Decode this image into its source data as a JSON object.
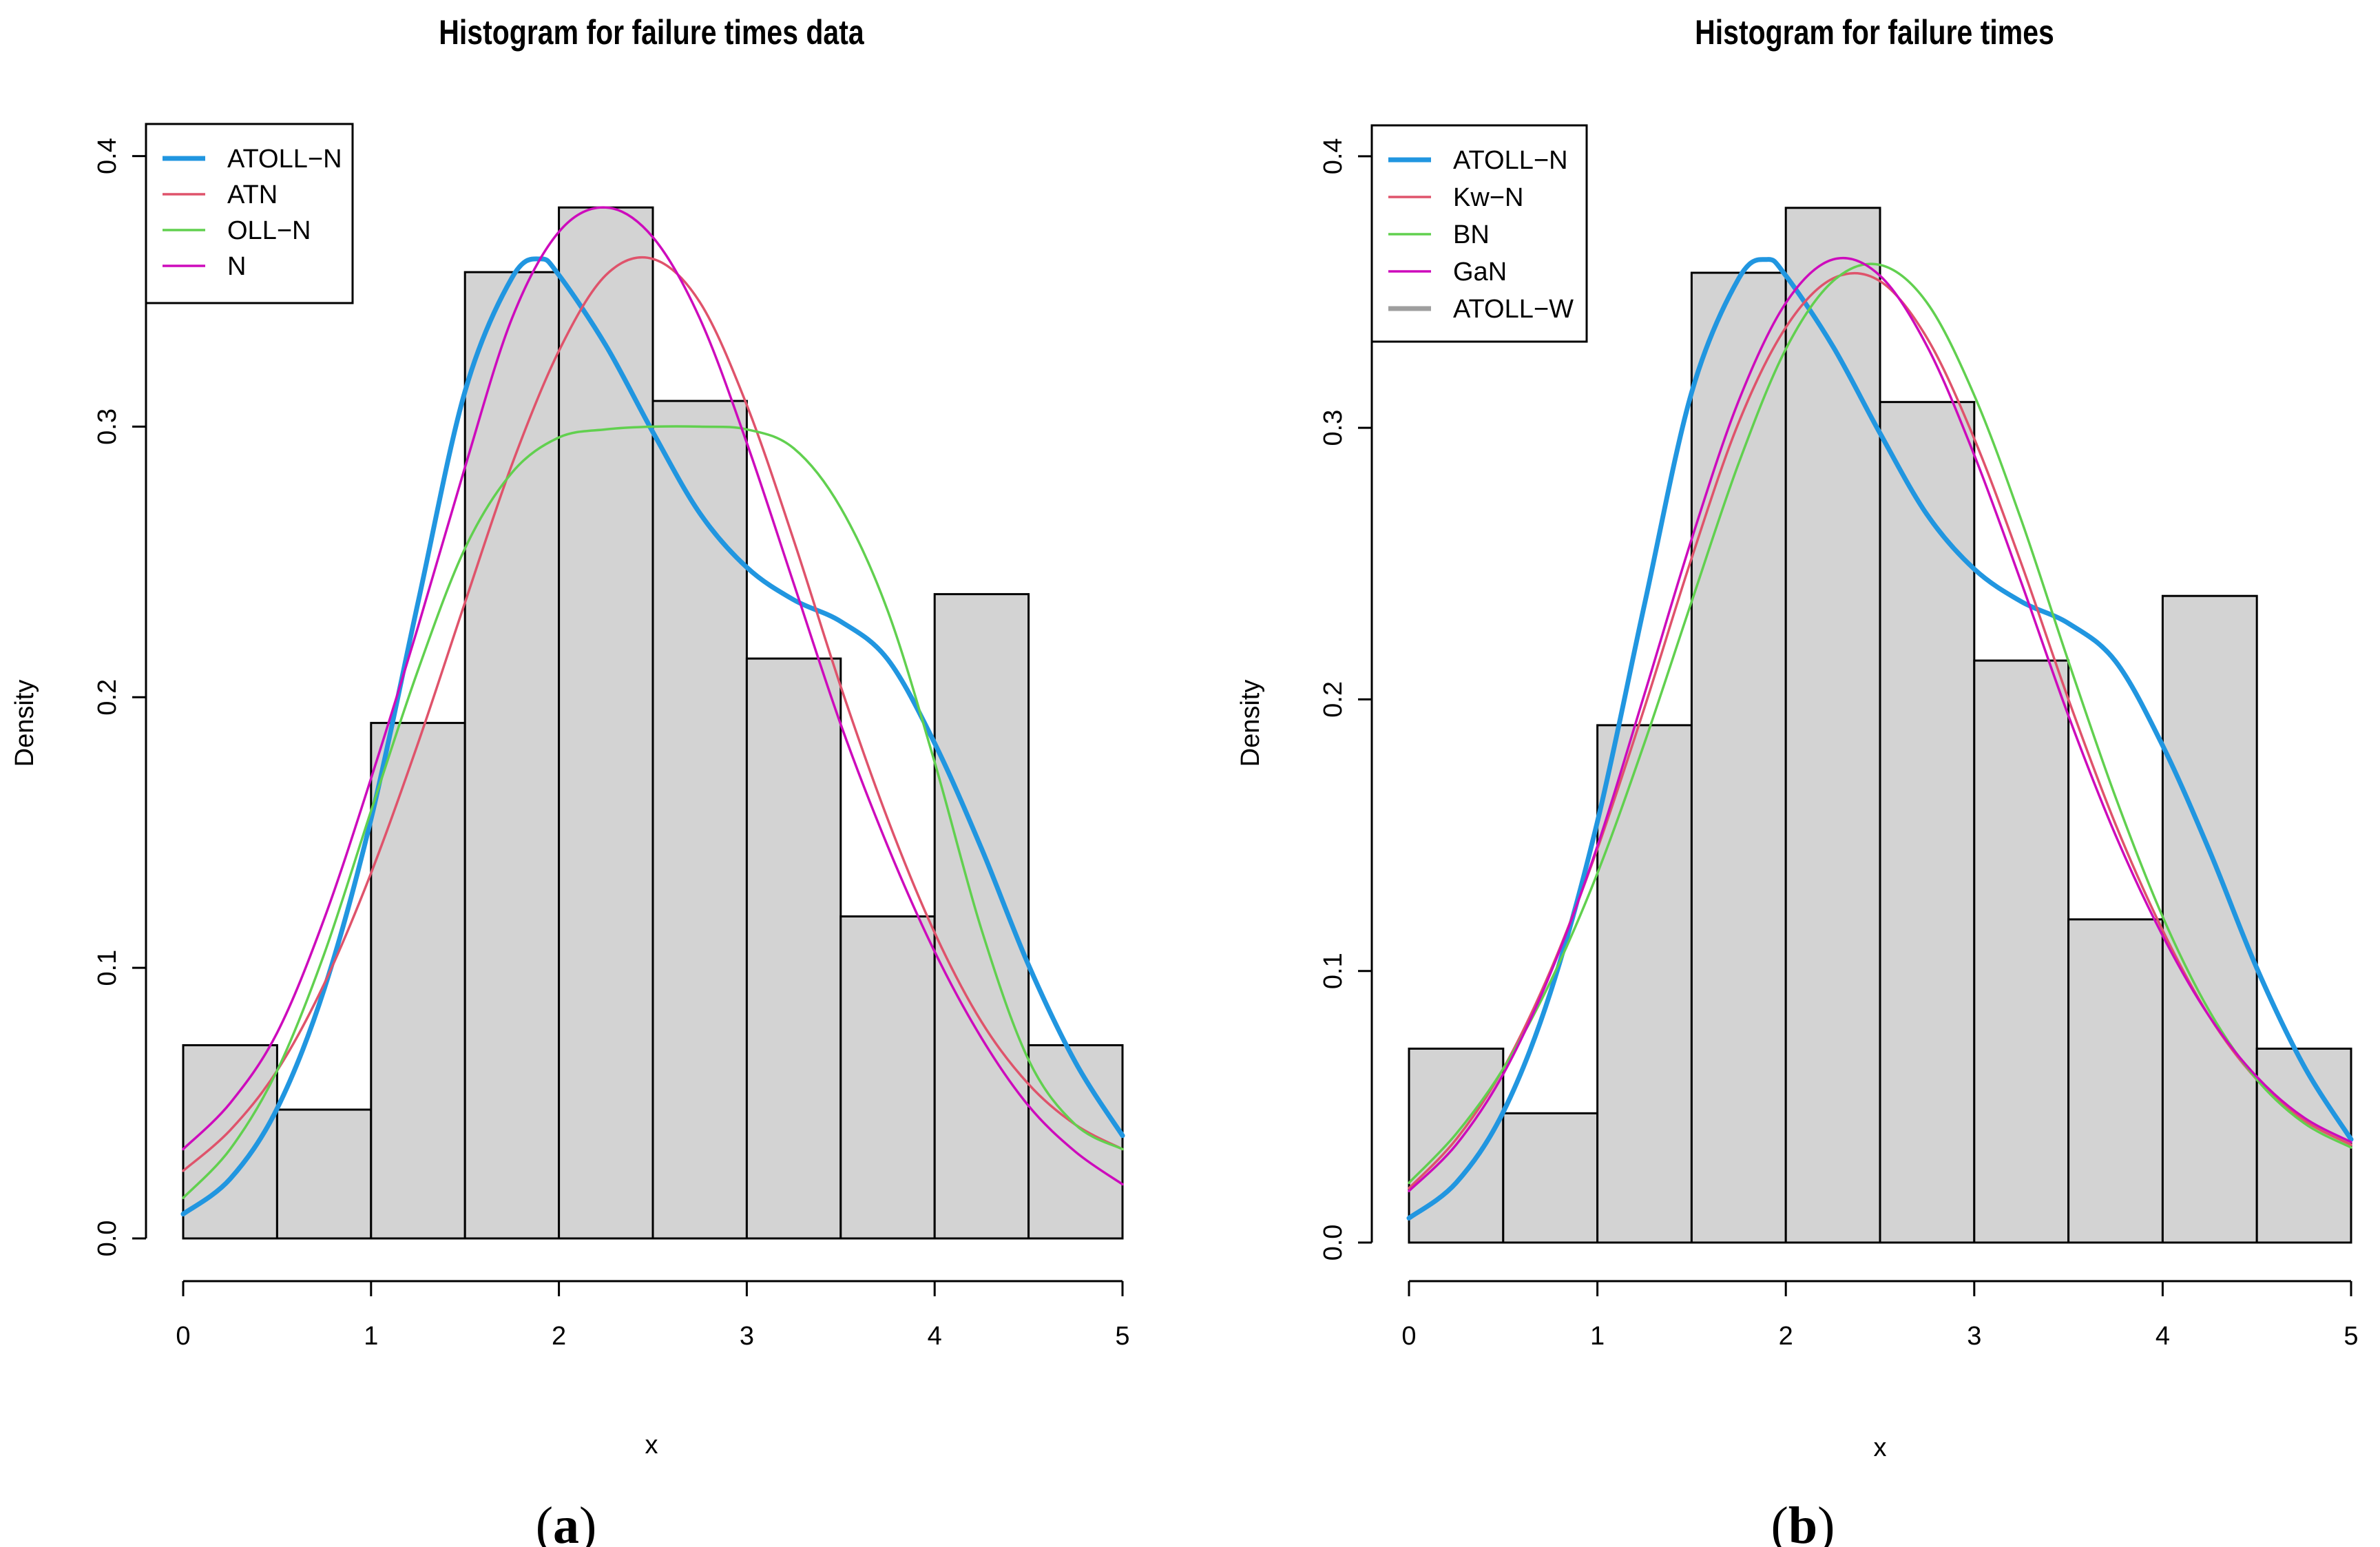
{
  "figure": {
    "panels": [
      {
        "label_open": "(",
        "label_letter": "a",
        "label_close": ")"
      },
      {
        "label_open": "(",
        "label_letter": "b",
        "label_close": ")"
      }
    ]
  },
  "chart_data": [
    {
      "type": "histogram",
      "title": "Histogram for failure times data",
      "xlabel": "x",
      "ylabel": "Density",
      "xlim": [
        0,
        5
      ],
      "ylim": [
        0,
        0.42
      ],
      "xticks": [
        0,
        1,
        2,
        3,
        4,
        5
      ],
      "yticks": [
        0.0,
        0.1,
        0.2,
        0.3,
        0.4
      ],
      "ytick_labels": [
        "0.0",
        "0.1",
        "0.2",
        "0.3",
        "0.4"
      ],
      "bin_edges": [
        0,
        0.5,
        1,
        1.5,
        2,
        2.5,
        3,
        3.5,
        4,
        4.5,
        5
      ],
      "values": [
        0.0714,
        0.0476,
        0.1905,
        0.3571,
        0.381,
        0.3095,
        0.2143,
        0.119,
        0.2381,
        0.0714
      ],
      "bar_color": "#d3d3d3",
      "legend_position": "top-left",
      "series": [
        {
          "name": "ATOLL−N",
          "color": "#2196e0",
          "width": "thick",
          "x": [
            0,
            0.25,
            0.5,
            0.75,
            1,
            1.25,
            1.5,
            1.75,
            1.9,
            2,
            2.25,
            2.5,
            2.75,
            3,
            3.25,
            3.5,
            3.75,
            4,
            4.25,
            4.5,
            4.75,
            5
          ],
          "y": [
            0.009,
            0.022,
            0.048,
            0.092,
            0.155,
            0.235,
            0.313,
            0.355,
            0.362,
            0.356,
            0.33,
            0.298,
            0.268,
            0.248,
            0.236,
            0.228,
            0.214,
            0.183,
            0.144,
            0.101,
            0.065,
            0.038
          ]
        },
        {
          "name": "ATN",
          "color": "#df536b",
          "width": "thin",
          "x": [
            0,
            0.25,
            0.5,
            0.75,
            1,
            1.25,
            1.5,
            1.75,
            2,
            2.25,
            2.5,
            2.75,
            3,
            3.25,
            3.5,
            3.75,
            4,
            4.25,
            4.5,
            4.75,
            5
          ],
          "y": [
            0.025,
            0.04,
            0.062,
            0.094,
            0.135,
            0.183,
            0.235,
            0.286,
            0.328,
            0.356,
            0.362,
            0.346,
            0.308,
            0.258,
            0.204,
            0.155,
            0.113,
            0.08,
            0.057,
            0.042,
            0.033
          ]
        },
        {
          "name": "OLL−N",
          "color": "#61d04f",
          "width": "thin",
          "x": [
            0,
            0.25,
            0.5,
            0.75,
            1,
            1.25,
            1.5,
            1.75,
            2,
            2.25,
            2.5,
            2.75,
            3,
            3.25,
            3.5,
            3.75,
            4,
            4.25,
            4.5,
            4.75,
            5
          ],
          "y": [
            0.015,
            0.033,
            0.062,
            0.105,
            0.158,
            0.21,
            0.255,
            0.283,
            0.296,
            0.299,
            0.3,
            0.3,
            0.299,
            0.292,
            0.27,
            0.232,
            0.176,
            0.114,
            0.066,
            0.042,
            0.033
          ]
        },
        {
          "name": "N",
          "color": "#cd0bbc",
          "width": "thin",
          "x": [
            0,
            0.25,
            0.5,
            0.75,
            1,
            1.25,
            1.5,
            1.75,
            2,
            2.25,
            2.5,
            2.75,
            3,
            3.25,
            3.5,
            3.75,
            4,
            4.25,
            4.5,
            4.75,
            5
          ],
          "y": [
            0.033,
            0.05,
            0.076,
            0.118,
            0.17,
            0.226,
            0.285,
            0.34,
            0.372,
            0.381,
            0.37,
            0.34,
            0.294,
            0.242,
            0.19,
            0.145,
            0.106,
            0.074,
            0.049,
            0.032,
            0.02
          ]
        }
      ]
    },
    {
      "type": "histogram",
      "title": "Histogram for failure times",
      "xlabel": "x",
      "ylabel": "Density",
      "xlim": [
        0,
        5
      ],
      "ylim": [
        0,
        0.42
      ],
      "xticks": [
        0,
        1,
        2,
        3,
        4,
        5
      ],
      "yticks": [
        0.0,
        0.1,
        0.2,
        0.3,
        0.4
      ],
      "ytick_labels": [
        "0.0",
        "0.1",
        "0.2",
        "0.3",
        "0.4"
      ],
      "bin_edges": [
        0,
        0.5,
        1,
        1.5,
        2,
        2.5,
        3,
        3.5,
        4,
        4.5,
        5
      ],
      "values": [
        0.0714,
        0.0476,
        0.1905,
        0.3571,
        0.381,
        0.3095,
        0.2143,
        0.119,
        0.2381,
        0.0714
      ],
      "bar_color": "#d3d3d3",
      "legend_position": "top-left",
      "series": [
        {
          "name": "ATOLL−N",
          "color": "#2196e0",
          "width": "thick",
          "x": [
            0,
            0.25,
            0.5,
            0.75,
            1,
            1.25,
            1.5,
            1.75,
            1.9,
            2,
            2.25,
            2.5,
            2.75,
            3,
            3.25,
            3.5,
            3.75,
            4,
            4.25,
            4.5,
            4.75,
            5
          ],
          "y": [
            0.009,
            0.022,
            0.048,
            0.092,
            0.155,
            0.235,
            0.313,
            0.355,
            0.362,
            0.356,
            0.33,
            0.298,
            0.268,
            0.248,
            0.236,
            0.228,
            0.214,
            0.183,
            0.144,
            0.101,
            0.065,
            0.038
          ]
        },
        {
          "name": "Kw−N",
          "color": "#df536b",
          "width": "thin",
          "x": [
            0,
            0.25,
            0.5,
            0.75,
            1,
            1.25,
            1.5,
            1.75,
            2,
            2.25,
            2.5,
            2.75,
            3,
            3.25,
            3.5,
            3.75,
            4,
            4.25,
            4.5,
            4.75,
            5
          ],
          "y": [
            0.02,
            0.038,
            0.064,
            0.1,
            0.145,
            0.197,
            0.252,
            0.302,
            0.337,
            0.355,
            0.354,
            0.333,
            0.296,
            0.25,
            0.2,
            0.154,
            0.115,
            0.083,
            0.06,
            0.045,
            0.036
          ]
        },
        {
          "name": "BN",
          "color": "#61d04f",
          "width": "thin",
          "x": [
            0,
            0.25,
            0.5,
            0.75,
            1,
            1.25,
            1.5,
            1.75,
            2,
            2.25,
            2.5,
            2.75,
            3,
            3.25,
            3.5,
            3.75,
            4,
            4.25,
            4.5,
            4.75,
            5
          ],
          "y": [
            0.022,
            0.04,
            0.064,
            0.096,
            0.136,
            0.184,
            0.236,
            0.287,
            0.329,
            0.354,
            0.36,
            0.346,
            0.312,
            0.266,
            0.214,
            0.164,
            0.12,
            0.085,
            0.06,
            0.044,
            0.035
          ]
        },
        {
          "name": "GaN",
          "color": "#cd0bbc",
          "width": "thin",
          "x": [
            0,
            0.25,
            0.5,
            0.75,
            1,
            1.25,
            1.5,
            1.75,
            2,
            2.25,
            2.5,
            2.75,
            3,
            3.25,
            3.5,
            3.75,
            4,
            4.25,
            4.5,
            4.75,
            5
          ],
          "y": [
            0.019,
            0.036,
            0.062,
            0.099,
            0.146,
            0.202,
            0.259,
            0.31,
            0.346,
            0.362,
            0.356,
            0.33,
            0.29,
            0.243,
            0.194,
            0.15,
            0.113,
            0.083,
            0.061,
            0.046,
            0.037
          ]
        },
        {
          "name": "ATOLL−W",
          "color": "#9e9e9e",
          "width": "thick",
          "x": [],
          "y": []
        }
      ]
    }
  ]
}
